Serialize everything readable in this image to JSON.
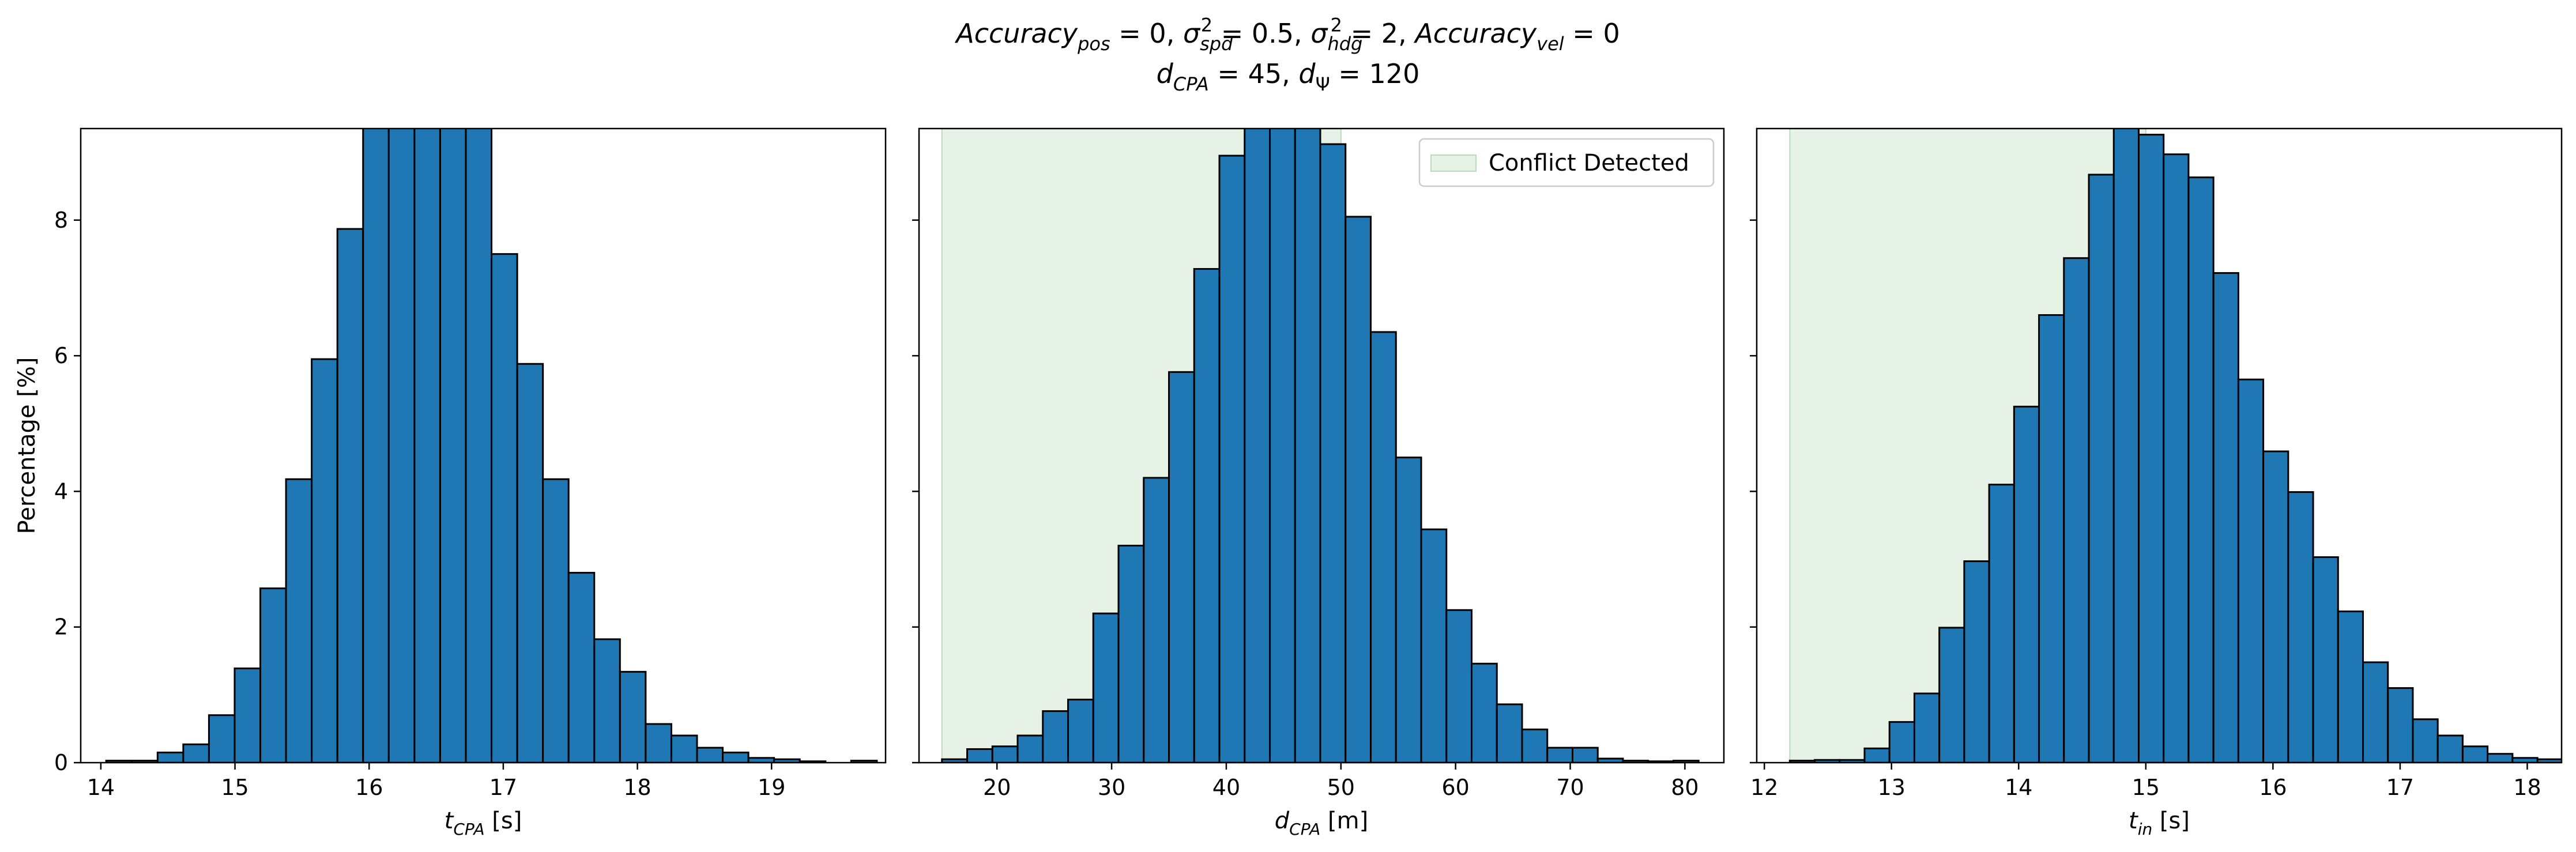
{
  "figure": {
    "title_line1": [
      {
        "t": "Accuracy",
        "i": true
      },
      {
        "t": "pos",
        "i": true,
        "sub": true
      },
      {
        "t": " = 0, "
      },
      {
        "t": "σ",
        "i": true
      },
      {
        "t": "spd",
        "i": true,
        "sub": true
      },
      {
        "t": "2",
        "sup": true
      },
      {
        "t": " = 0.5, "
      },
      {
        "t": "σ",
        "i": true
      },
      {
        "t": "hdg",
        "i": true,
        "sub": true
      },
      {
        "t": "2",
        "sup": true
      },
      {
        "t": " = 2, "
      },
      {
        "t": "Accuracy",
        "i": true
      },
      {
        "t": "vel",
        "i": true,
        "sub": true
      },
      {
        "t": " = 0"
      }
    ],
    "title_line2": [
      {
        "t": "d",
        "i": true
      },
      {
        "t": "CPA",
        "i": true,
        "sub": true
      },
      {
        "t": " = 45, "
      },
      {
        "t": "d",
        "i": true
      },
      {
        "t": "Ψ",
        "sub": true
      },
      {
        "t": " = 120"
      }
    ]
  },
  "colors": {
    "bar_fill": "#1f77b4",
    "bar_edge": "#000000",
    "conflict_fill": "#e5f2e5",
    "conflict_edge": "#b9dbb9"
  },
  "chart_data": [
    {
      "type": "bar",
      "panel": "left",
      "xlabel": [
        {
          "t": "t",
          "i": true
        },
        {
          "t": "CPA",
          "i": true,
          "sub": true
        },
        {
          "t": " [s]"
        }
      ],
      "ylabel": "Percentage [%]",
      "xlim": [
        13.85,
        19.85
      ],
      "ylim": [
        0,
        9.35
      ],
      "xticks": [
        14,
        15,
        16,
        17,
        18,
        19
      ],
      "yticks": [
        0,
        2,
        4,
        6,
        8
      ],
      "bin_start": 14.04,
      "bin_width": 0.1915,
      "values": [
        0.03,
        0.03,
        0.15,
        0.27,
        0.7,
        1.39,
        2.57,
        4.18,
        5.95,
        7.87,
        9.8,
        10.2,
        10.4,
        10.1,
        9.5,
        7.5,
        5.88,
        4.18,
        2.8,
        1.82,
        1.34,
        0.57,
        0.4,
        0.22,
        0.15,
        0.07,
        0.05,
        0.02,
        0.0,
        0.03
      ]
    },
    {
      "type": "bar",
      "panel": "middle",
      "xlabel": [
        {
          "t": "d",
          "i": true
        },
        {
          "t": "CPA",
          "i": true,
          "sub": true
        },
        {
          "t": " [m]"
        }
      ],
      "xlim": [
        13.2,
        83.4
      ],
      "ylim": [
        0,
        9.35
      ],
      "xticks": [
        20,
        30,
        40,
        50,
        60,
        70,
        80
      ],
      "yticks": [
        0,
        2,
        4,
        6,
        8
      ],
      "bin_start": 15.2,
      "bin_width": 2.2,
      "values": [
        0.05,
        0.2,
        0.24,
        0.4,
        0.76,
        0.93,
        2.2,
        3.2,
        4.2,
        5.76,
        7.28,
        8.95,
        9.6,
        10.0,
        9.9,
        9.12,
        8.05,
        6.35,
        4.5,
        3.44,
        2.25,
        1.46,
        0.86,
        0.49,
        0.22,
        0.22,
        0.06,
        0.03,
        0.02,
        0.03
      ],
      "shaded_region": [
        15.2,
        50.0
      ],
      "legend": {
        "label": "Conflict Detected",
        "loc": "upper right"
      }
    },
    {
      "type": "bar",
      "panel": "right",
      "xlabel": [
        {
          "t": "t",
          "i": true
        },
        {
          "t": "in",
          "i": true,
          "sub": true
        },
        {
          "t": " [s]"
        }
      ],
      "xlim": [
        11.94,
        18.27
      ],
      "ylim": [
        0,
        9.35
      ],
      "xticks": [
        12,
        13,
        14,
        15,
        16,
        17,
        18
      ],
      "yticks": [
        0,
        2,
        4,
        6,
        8
      ],
      "bin_start": 12.2,
      "bin_width": 0.196,
      "values": [
        0.03,
        0.04,
        0.04,
        0.21,
        0.6,
        1.02,
        1.99,
        2.97,
        4.1,
        5.25,
        6.6,
        7.44,
        8.67,
        9.4,
        9.26,
        8.97,
        8.63,
        7.22,
        5.65,
        4.59,
        3.99,
        3.03,
        2.23,
        1.48,
        1.1,
        0.64,
        0.4,
        0.24,
        0.13,
        0.07,
        0.05,
        0.03
      ],
      "shaded_region": [
        12.2,
        15.0
      ]
    }
  ]
}
